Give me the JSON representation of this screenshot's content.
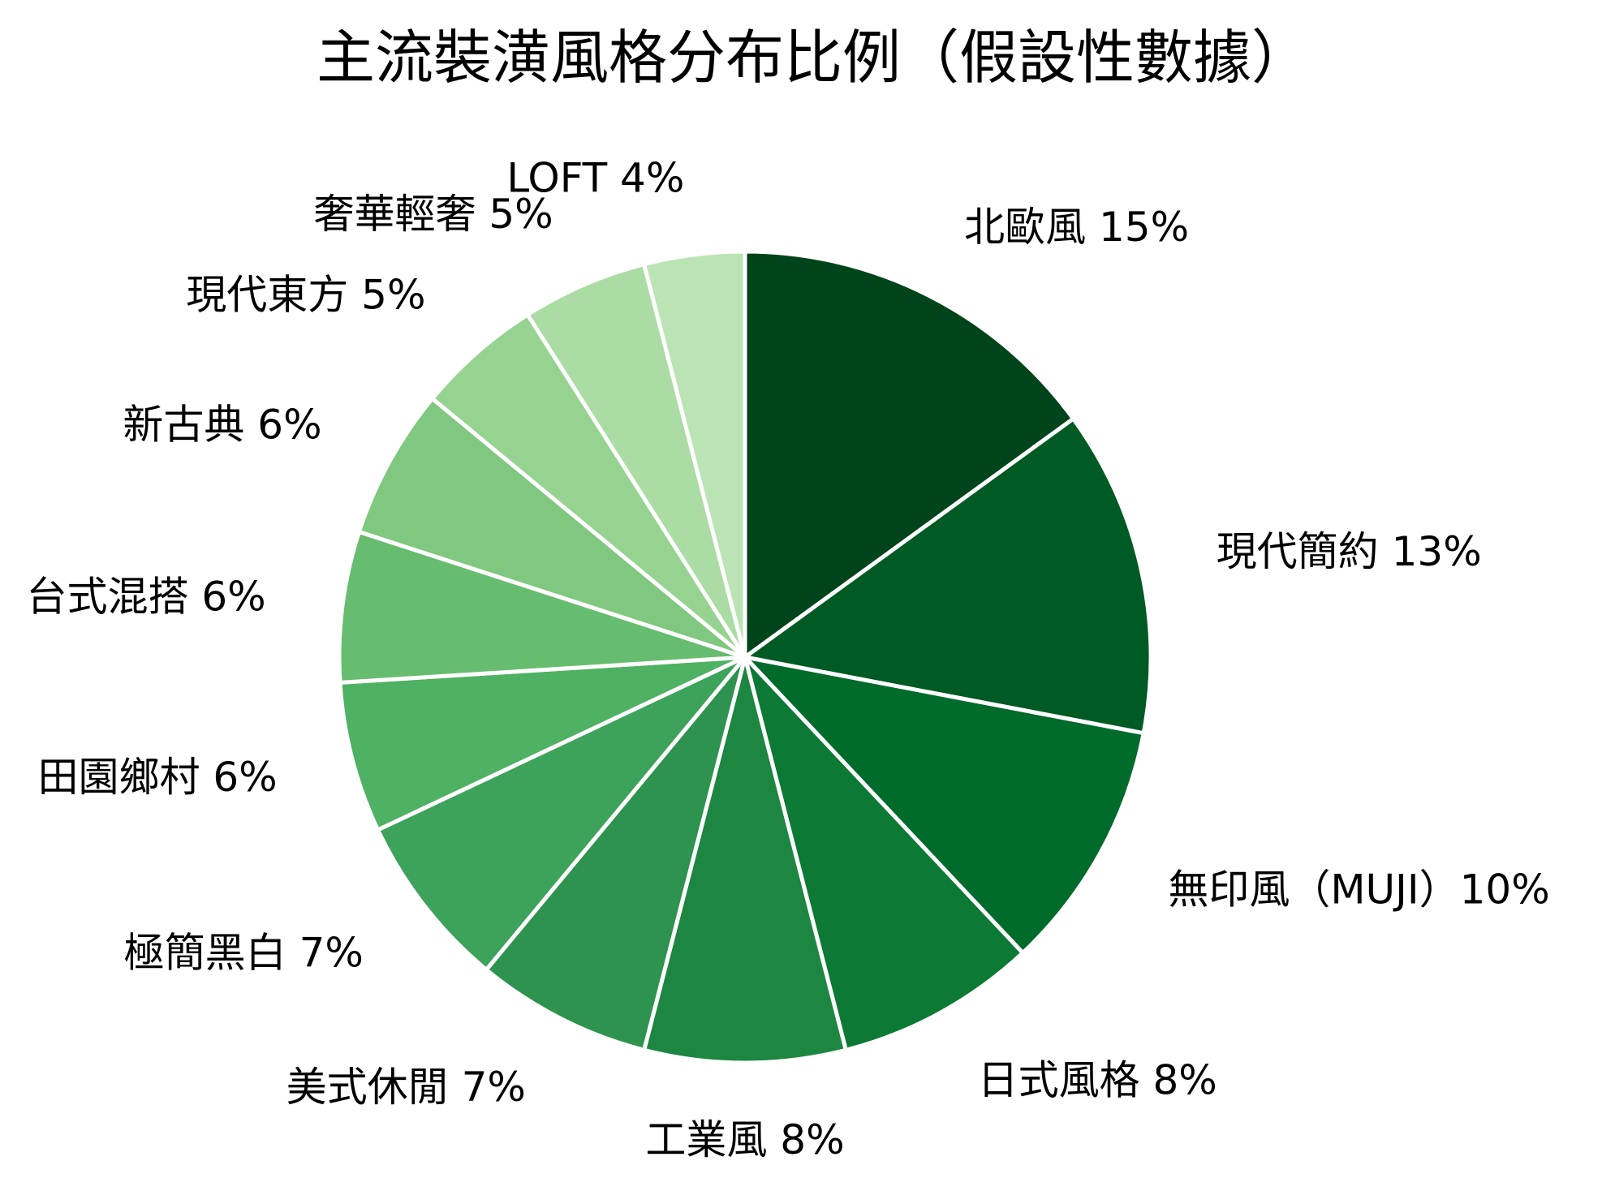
{
  "chart_data": {
    "type": "pie",
    "title": "主流裝潢風格分布比例（假設性數據）",
    "categories": [
      "北歐風",
      "現代簡約",
      "無印風（MUJI）",
      "日式風格",
      "工業風",
      "美式休閒",
      "極簡黑白",
      "田園鄉村",
      "台式混搭",
      "新古典",
      "現代東方",
      "奢華輕奢",
      "LOFT"
    ],
    "values": [
      15,
      13,
      10,
      8,
      8,
      7,
      7,
      6,
      6,
      6,
      5,
      5,
      4
    ],
    "value_suffix": "%",
    "start_angle": "12 o'clock",
    "direction": "clockwise",
    "colors": [
      "#00441b",
      "#005a24",
      "#006b2b",
      "#0c7934",
      "#1d8641",
      "#2d934e",
      "#3da35a",
      "#4fb163",
      "#67bd6f",
      "#80c77f",
      "#97d390",
      "#abdca3",
      "#bae4b3"
    ],
    "labels": [
      "北歐風 15%",
      "現代簡約 13%",
      "無印風（MUJI）10%",
      "日式風格 8%",
      "工業風 8%",
      "美式休閒 7%",
      "極簡黑白 7%",
      "田園鄉村 6%",
      "台式混搭 6%",
      "新古典 6%",
      "現代東方 5%",
      "奢華輕奢 5%",
      "LOFT 4%"
    ]
  }
}
